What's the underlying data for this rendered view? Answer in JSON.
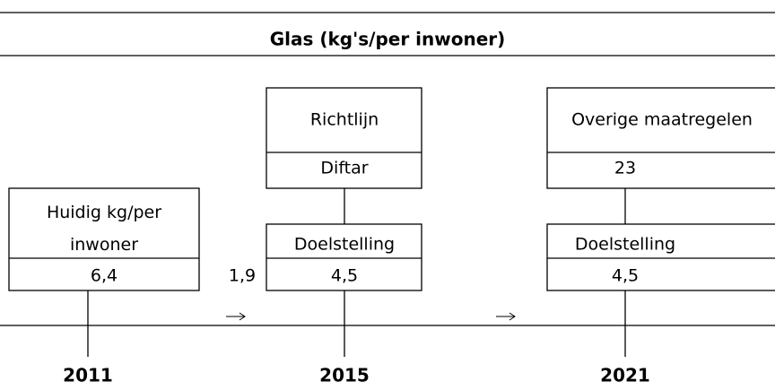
{
  "title": "Glas (kg's/per inwoner)",
  "milestones": [
    {
      "year": "2011",
      "label": "Huidig kg/per inwoner",
      "value": "6,4"
    },
    {
      "year": "2015",
      "measure": {
        "label": "Richtlijn",
        "value": "Diftar"
      },
      "label": "Doelstelling",
      "value": "4,5"
    },
    {
      "year": "2021",
      "measure": {
        "label": "Overige maatregelen",
        "value": "23"
      },
      "label": "Doelstelling",
      "value": "4,5"
    }
  ],
  "changes": [
    "1,9"
  ]
}
